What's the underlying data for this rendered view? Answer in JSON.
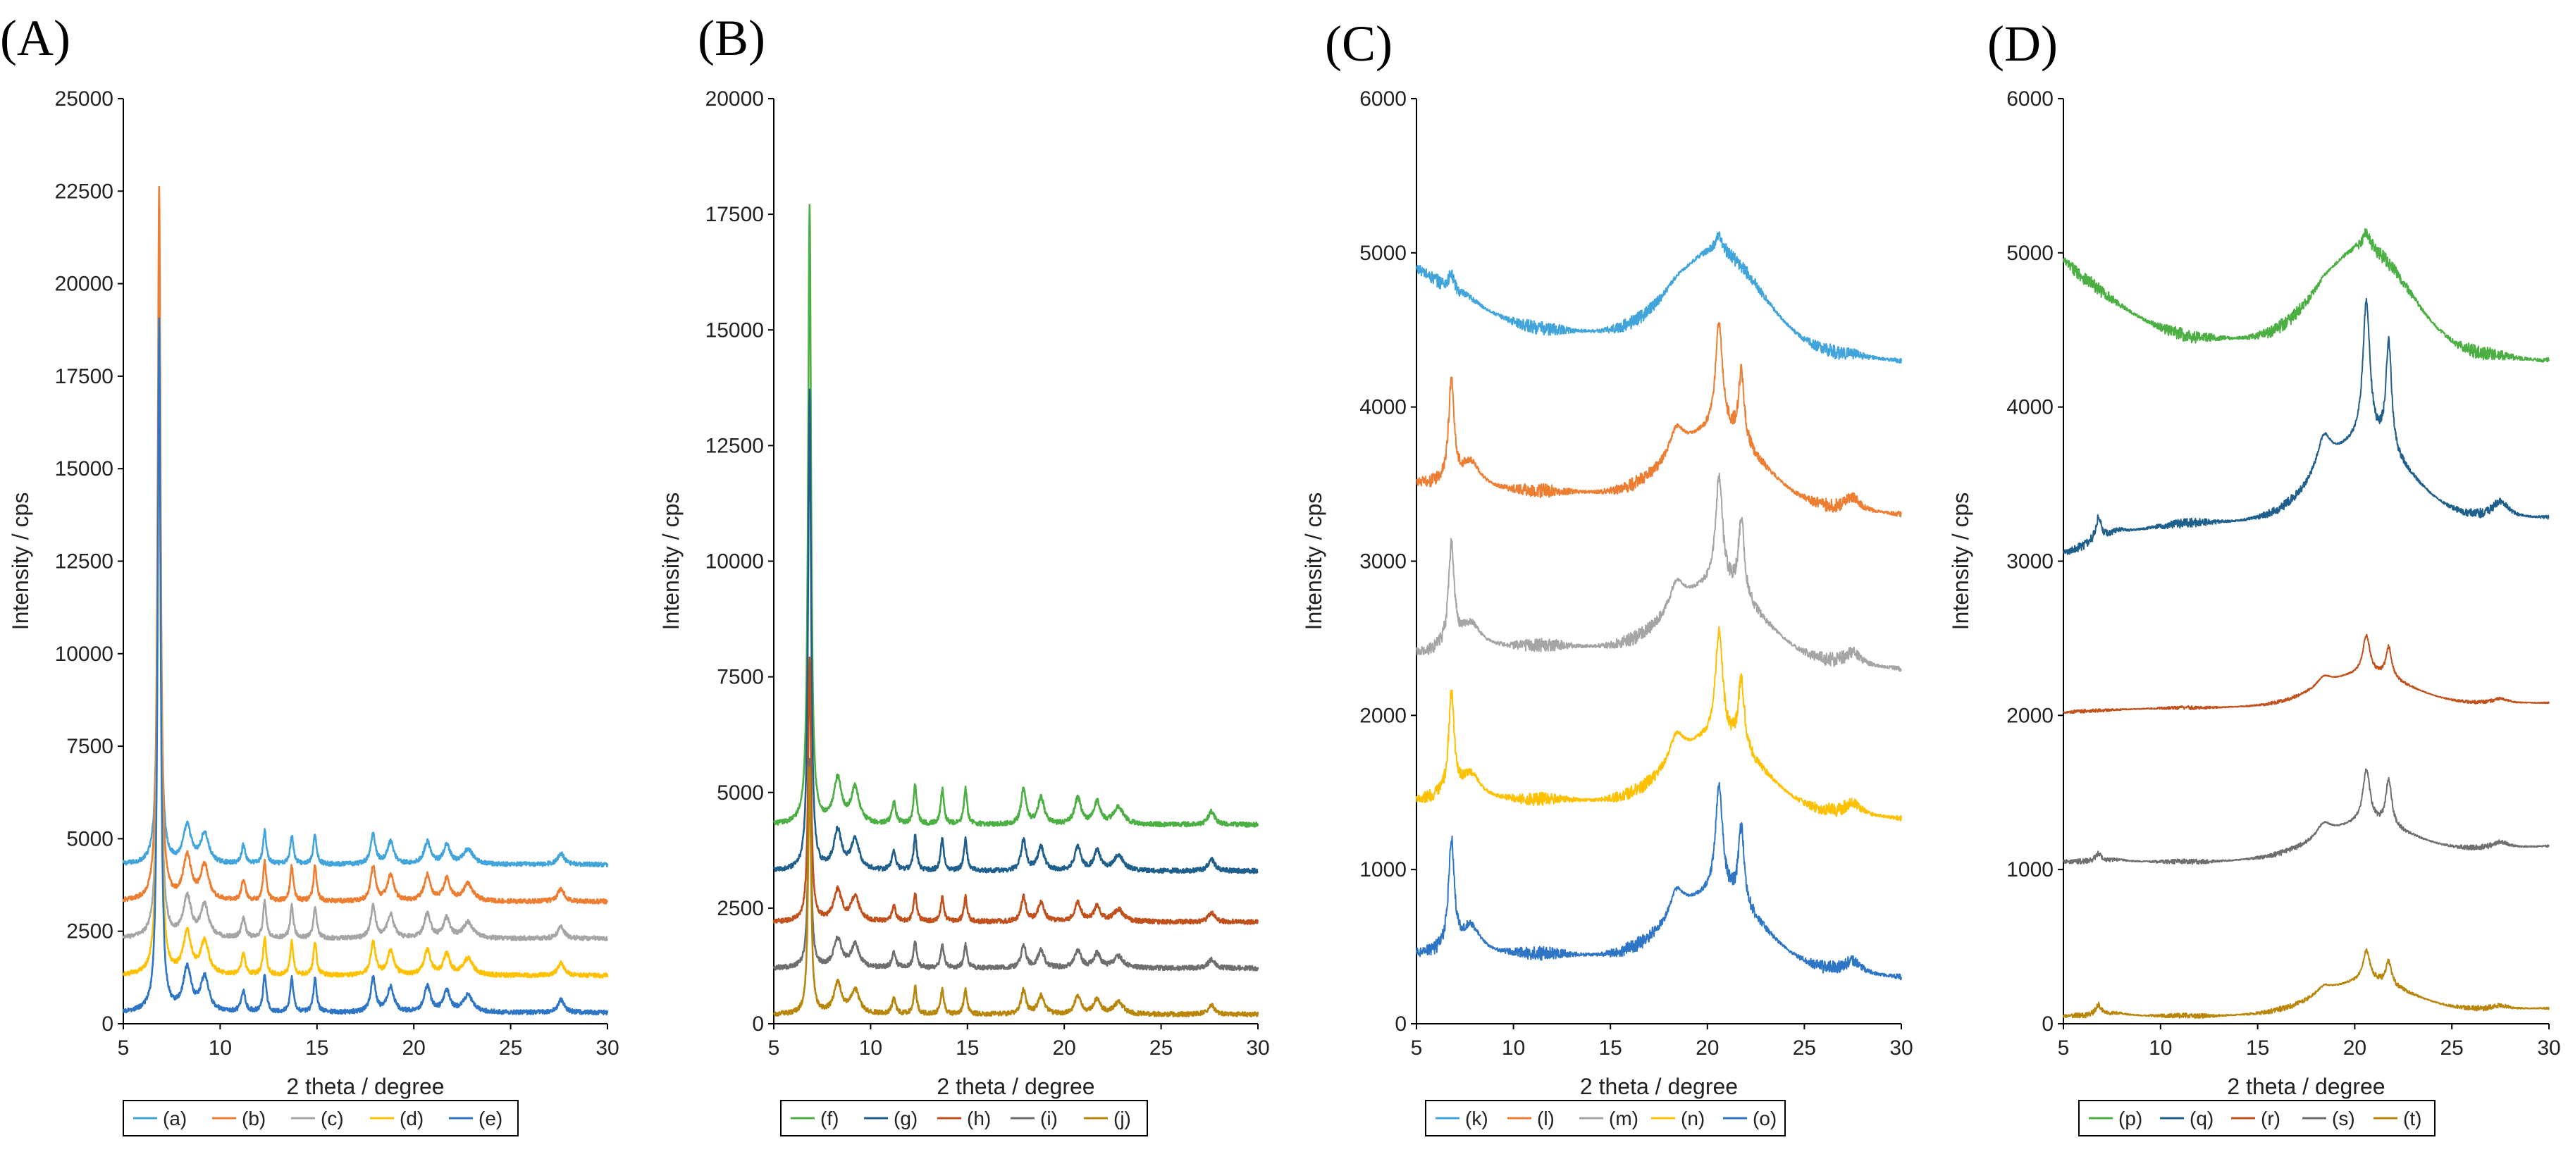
{
  "figure": {
    "panels": [
      "(A)",
      "(B)",
      "(C)",
      "(D)"
    ]
  },
  "chart_data": [
    {
      "type": "line",
      "panel_label": "(A)",
      "xlabel": "2 theta / degree",
      "ylabel": "Intensity / cps",
      "xlim": [
        5,
        30
      ],
      "ylim": [
        0,
        25000
      ],
      "xticks": [
        5,
        10,
        15,
        20,
        25,
        30
      ],
      "yticks": [
        0,
        2500,
        5000,
        7500,
        10000,
        12500,
        15000,
        17500,
        20000,
        22500,
        25000
      ],
      "legend_position": "bottom",
      "grid": false,
      "peaks": [
        {
          "x": 6.85,
          "w": 0.09,
          "h": 1.0
        },
        {
          "x": 8.3,
          "w": 0.25,
          "h": 0.05
        },
        {
          "x": 9.2,
          "w": 0.25,
          "h": 0.04
        },
        {
          "x": 11.2,
          "w": 0.12,
          "h": 0.025
        },
        {
          "x": 12.3,
          "w": 0.1,
          "h": 0.045
        },
        {
          "x": 13.7,
          "w": 0.1,
          "h": 0.04
        },
        {
          "x": 14.9,
          "w": 0.1,
          "h": 0.04
        },
        {
          "x": 17.9,
          "w": 0.15,
          "h": 0.04
        },
        {
          "x": 18.8,
          "w": 0.2,
          "h": 0.03
        },
        {
          "x": 20.7,
          "w": 0.2,
          "h": 0.03
        },
        {
          "x": 21.7,
          "w": 0.2,
          "h": 0.025
        },
        {
          "x": 22.8,
          "w": 0.3,
          "h": 0.02
        },
        {
          "x": 27.6,
          "w": 0.2,
          "h": 0.015
        }
      ],
      "series": [
        {
          "name": "(a)",
          "color": "#41a5dc",
          "baseline": 4300,
          "peak": 14700,
          "noise": 60
        },
        {
          "name": "(b)",
          "color": "#ed7d31",
          "baseline": 3300,
          "peak": 19300,
          "noise": 60
        },
        {
          "name": "(c)",
          "color": "#a5a5a5",
          "baseline": 2300,
          "peak": 16700,
          "noise": 60
        },
        {
          "name": "(d)",
          "color": "#ffc000",
          "baseline": 1300,
          "peak": 17700,
          "noise": 60
        },
        {
          "name": "(e)",
          "color": "#2e75c6",
          "baseline": 300,
          "peak": 18700,
          "noise": 60
        }
      ]
    },
    {
      "type": "line",
      "panel_label": "(B)",
      "xlabel": "2 theta / degree",
      "ylabel": "Intensity / cps",
      "xlim": [
        5,
        30
      ],
      "ylim": [
        0,
        20000
      ],
      "xticks": [
        5,
        10,
        15,
        20,
        25,
        30
      ],
      "yticks": [
        0,
        2500,
        5000,
        7500,
        10000,
        12500,
        15000,
        17500,
        20000
      ],
      "legend_position": "bottom",
      "grid": false,
      "peaks": [
        {
          "x": 6.85,
          "w": 0.09,
          "h": 1.0
        },
        {
          "x": 8.3,
          "w": 0.25,
          "h": 0.05
        },
        {
          "x": 9.2,
          "w": 0.25,
          "h": 0.04
        },
        {
          "x": 11.2,
          "w": 0.12,
          "h": 0.025
        },
        {
          "x": 12.3,
          "w": 0.1,
          "h": 0.045
        },
        {
          "x": 13.7,
          "w": 0.1,
          "h": 0.04
        },
        {
          "x": 14.9,
          "w": 0.1,
          "h": 0.04
        },
        {
          "x": 17.9,
          "w": 0.15,
          "h": 0.04
        },
        {
          "x": 18.8,
          "w": 0.2,
          "h": 0.03
        },
        {
          "x": 20.7,
          "w": 0.2,
          "h": 0.03
        },
        {
          "x": 21.7,
          "w": 0.2,
          "h": 0.025
        },
        {
          "x": 22.8,
          "w": 0.3,
          "h": 0.02
        },
        {
          "x": 27.6,
          "w": 0.2,
          "h": 0.015
        }
      ],
      "series": [
        {
          "name": "(f)",
          "color": "#4caf43",
          "baseline": 4300,
          "peak": 13400,
          "noise": 50
        },
        {
          "name": "(g)",
          "color": "#1f5f8b",
          "baseline": 3300,
          "peak": 10400,
          "noise": 50
        },
        {
          "name": "(h)",
          "color": "#c0501c",
          "baseline": 2200,
          "peak": 5700,
          "noise": 50
        },
        {
          "name": "(i)",
          "color": "#6e6e6e",
          "baseline": 1200,
          "peak": 4500,
          "noise": 50
        },
        {
          "name": "(j)",
          "color": "#b8860b",
          "baseline": 200,
          "peak": 5300,
          "noise": 50
        }
      ]
    },
    {
      "type": "line",
      "panel_label": "(C)",
      "xlabel": "2 theta / degree",
      "ylabel": "Intensity / cps",
      "xlim": [
        5,
        30
      ],
      "ylim": [
        0,
        6000
      ],
      "xticks": [
        5,
        10,
        15,
        20,
        25,
        30
      ],
      "yticks": [
        0,
        1000,
        2000,
        3000,
        4000,
        5000,
        6000
      ],
      "legend_position": "bottom",
      "grid": false,
      "halo_center": 20.5,
      "series": [
        {
          "name": "(k)",
          "color": "#41a5dc",
          "start": 4900,
          "valley": 4500,
          "halo": 600,
          "end": 4300,
          "p68": 100,
          "p206": 100,
          "p217": 0,
          "noise": 45
        },
        {
          "name": "(l)",
          "color": "#ed7d31",
          "start": 3500,
          "valley": 3450,
          "halo": 450,
          "end": 3300,
          "p68": 650,
          "p206": 700,
          "p217": 450,
          "noise": 45
        },
        {
          "name": "(m)",
          "color": "#a5a5a5",
          "start": 2400,
          "valley": 2450,
          "halo": 450,
          "end": 2300,
          "p68": 650,
          "p206": 700,
          "p217": 500,
          "noise": 45
        },
        {
          "name": "(n)",
          "color": "#ffc000",
          "start": 1450,
          "valley": 1450,
          "halo": 450,
          "end": 1330,
          "p68": 650,
          "p206": 700,
          "p217": 450,
          "noise": 45
        },
        {
          "name": "(o)",
          "color": "#2e75c6",
          "start": 450,
          "valley": 450,
          "halo": 450,
          "end": 300,
          "p68": 700,
          "p206": 700,
          "p217": 500,
          "noise": 45
        }
      ]
    },
    {
      "type": "line",
      "panel_label": "(D)",
      "xlabel": "2 theta / degree",
      "ylabel": "Intensity / cps",
      "xlim": [
        5,
        30
      ],
      "ylim": [
        0,
        6000
      ],
      "xticks": [
        5,
        10,
        15,
        20,
        25,
        30
      ],
      "yticks": [
        0,
        1000,
        2000,
        3000,
        4000,
        5000,
        6000
      ],
      "legend_position": "bottom",
      "grid": false,
      "halo_center": 20.5,
      "series": [
        {
          "name": "(p)",
          "color": "#4caf43",
          "start": 4950,
          "valley": 4450,
          "halo": 650,
          "end": 4300,
          "p68": 0,
          "p206": 100,
          "p217": 0,
          "noise": 45
        },
        {
          "name": "(q)",
          "color": "#1f5f8b",
          "start": 3050,
          "valley": 3250,
          "halo": 500,
          "end": 3280,
          "p68": 150,
          "p206": 900,
          "p217": 700,
          "noise": 30
        },
        {
          "name": "(r)",
          "color": "#c0501c",
          "start": 2020,
          "valley": 2050,
          "halo": 200,
          "end": 2080,
          "p68": 0,
          "p206": 250,
          "p217": 200,
          "noise": 12
        },
        {
          "name": "(s)",
          "color": "#6e6e6e",
          "start": 1050,
          "valley": 1050,
          "halo": 200,
          "end": 1150,
          "p68": 50,
          "p206": 350,
          "p217": 300,
          "noise": 18
        },
        {
          "name": "(t)",
          "color": "#b8860b",
          "start": 50,
          "valley": 50,
          "halo": 200,
          "end": 100,
          "p68": 70,
          "p206": 200,
          "p217": 150,
          "noise": 18
        }
      ]
    }
  ]
}
